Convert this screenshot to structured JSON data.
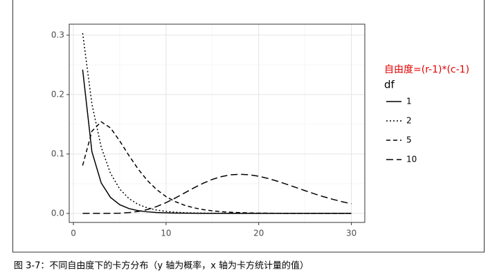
{
  "chart_data": {
    "type": "line",
    "caption": "图 3-7：不同自由度下的卡方分布（y 轴为概率，x 轴为卡方统计量的值）",
    "annotation": "自由度=(r-1)*(c-1)",
    "annotation_color": "#e00000",
    "legend_title": "df",
    "x": [
      1,
      2,
      3,
      4,
      5,
      6,
      7,
      8,
      9,
      10,
      11,
      12,
      13,
      14,
      15,
      16,
      17,
      18,
      19,
      20,
      21,
      22,
      23,
      24,
      25,
      26,
      27,
      28,
      29,
      30
    ],
    "series": [
      {
        "name": "1",
        "color": "#000000",
        "linetype": "solid",
        "values": [
          0.242,
          0.1038,
          0.0514,
          0.027,
          0.0146,
          0.0081,
          0.0046,
          0.0026,
          0.0015,
          0.0009,
          0.0005,
          0.0003,
          0.0002,
          0.0001,
          0.0001,
          0,
          0,
          0,
          0,
          0,
          0,
          0,
          0,
          0,
          0,
          0,
          0,
          0,
          0,
          0
        ]
      },
      {
        "name": "2",
        "color": "#000000",
        "linetype": "dotted",
        "values": [
          0.3033,
          0.1839,
          0.1116,
          0.0677,
          0.041,
          0.0249,
          0.0151,
          0.0092,
          0.0056,
          0.0034,
          0.002,
          0.0012,
          0.0008,
          0.0005,
          0.0003,
          0.0002,
          0.0001,
          0,
          0,
          0,
          0,
          0,
          0,
          0,
          0,
          0,
          0,
          0,
          0,
          0
        ]
      },
      {
        "name": "5",
        "color": "#000000",
        "linetype": "dashed",
        "values": [
          0.0807,
          0.1384,
          0.1542,
          0.144,
          0.122,
          0.0973,
          0.0744,
          0.0551,
          0.0399,
          0.0283,
          0.0198,
          0.0137,
          0.0094,
          0.0064,
          0.0043,
          0.0029,
          0.0019,
          0.0013,
          0.0008,
          0.0005,
          0.0004,
          0.0002,
          0.0001,
          0.0001,
          0,
          0,
          0,
          0,
          0,
          0
        ]
      },
      {
        "name": "10",
        "color": "#000000",
        "linetype": "longdash",
        "values": [
          0,
          0,
          0,
          0.0001,
          0.0004,
          0.0014,
          0.0033,
          0.0066,
          0.0116,
          0.0181,
          0.0259,
          0.0344,
          0.0429,
          0.0507,
          0.0573,
          0.062,
          0.065,
          0.0659,
          0.065,
          0.0626,
          0.0588,
          0.0543,
          0.0491,
          0.0437,
          0.0383,
          0.033,
          0.0281,
          0.0237,
          0.0197,
          0.0162
        ]
      }
    ],
    "xlim": [
      -0.45,
      31.45
    ],
    "xticks": [
      0,
      10,
      20,
      30
    ],
    "x_minor_grid": [
      5,
      15,
      25
    ],
    "ylim": [
      -0.0152,
      0.3185
    ],
    "yticks": [
      {
        "value": 0,
        "label": "0.0"
      },
      0.1,
      0.2,
      0.3
    ],
    "y_minor_grid": [
      0.05,
      0.15,
      0.25
    ],
    "grid": true
  }
}
